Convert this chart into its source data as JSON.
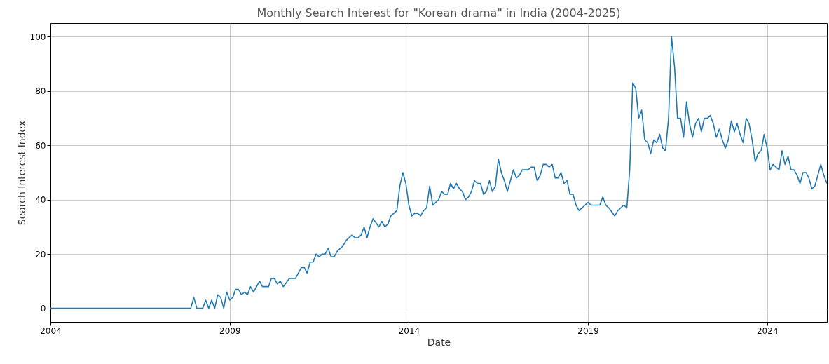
{
  "chart_data": {
    "type": "line",
    "title": "Monthly Search Interest for \"Korean drama\" in India (2004-2025)",
    "xlabel": "Date",
    "ylabel": "Search Interest Index",
    "x": [
      "2004-01",
      "2007-12",
      "2008-01",
      "2008-02",
      "2008-04",
      "2008-05",
      "2008-06",
      "2008-07",
      "2008-08",
      "2008-09",
      "2008-10",
      "2008-11",
      "2008-12",
      "2009-01",
      "2009-02",
      "2009-03",
      "2009-04",
      "2009-05",
      "2009-06",
      "2009-07",
      "2009-08",
      "2009-09",
      "2009-11",
      "2009-12",
      "2010-02",
      "2010-03",
      "2010-04",
      "2010-05",
      "2010-06",
      "2010-07",
      "2010-09",
      "2010-11",
      "2011-01",
      "2011-02",
      "2011-03",
      "2011-04",
      "2011-05",
      "2011-06",
      "2011-07",
      "2011-08",
      "2011-09",
      "2011-10",
      "2011-11",
      "2011-12",
      "2012-01",
      "2012-03",
      "2012-04",
      "2012-05",
      "2012-06",
      "2012-07",
      "2012-08",
      "2012-09",
      "2012-10",
      "2012-11",
      "2012-12",
      "2013-01",
      "2013-03",
      "2013-04",
      "2013-05",
      "2013-06",
      "2013-07",
      "2013-08",
      "2013-09",
      "2013-10",
      "2013-11",
      "2013-12",
      "2014-01",
      "2014-02",
      "2014-03",
      "2014-04",
      "2014-05",
      "2014-06",
      "2014-07",
      "2014-08",
      "2014-09",
      "2014-11",
      "2014-12",
      "2015-01",
      "2015-02",
      "2015-03",
      "2015-04",
      "2015-05",
      "2015-06",
      "2015-07",
      "2015-08",
      "2015-09",
      "2015-10",
      "2015-11",
      "2015-12",
      "2016-01",
      "2016-02",
      "2016-03",
      "2016-04",
      "2016-05",
      "2016-06",
      "2016-07",
      "2016-08",
      "2016-09",
      "2016-10",
      "2016-11",
      "2016-12",
      "2017-01",
      "2017-02",
      "2017-03",
      "2017-05",
      "2017-06",
      "2017-07",
      "2017-08",
      "2017-09",
      "2017-10",
      "2017-11",
      "2017-12",
      "2018-01",
      "2018-02",
      "2018-03",
      "2018-04",
      "2018-05",
      "2018-06",
      "2018-07",
      "2018-08",
      "2018-09",
      "2018-10",
      "2018-12",
      "2019-01",
      "2019-02",
      "2019-05",
      "2019-06",
      "2019-07",
      "2019-08",
      "2019-10",
      "2019-11",
      "2020-01",
      "2020-02",
      "2020-03",
      "2020-04",
      "2020-05",
      "2020-06",
      "2020-07",
      "2020-08",
      "2020-09",
      "2020-10",
      "2020-11",
      "2020-12",
      "2021-01",
      "2021-02",
      "2021-03",
      "2021-04",
      "2021-05",
      "2021-06",
      "2021-07",
      "2021-08",
      "2021-09",
      "2021-10",
      "2021-11",
      "2021-12",
      "2022-01",
      "2022-02",
      "2022-03",
      "2022-04",
      "2022-05",
      "2022-06",
      "2022-07",
      "2022-08",
      "2022-09",
      "2022-10",
      "2022-11",
      "2022-12",
      "2023-01",
      "2023-02",
      "2023-03",
      "2023-04",
      "2023-05",
      "2023-06",
      "2023-07",
      "2023-08",
      "2023-09",
      "2023-10",
      "2023-11",
      "2023-12",
      "2024-01",
      "2024-02",
      "2024-03",
      "2024-04",
      "2024-05",
      "2024-06",
      "2024-07",
      "2024-08",
      "2024-09",
      "2024-10",
      "2024-11",
      "2024-12",
      "2025-01",
      "2025-02",
      "2025-03",
      "2025-04",
      "2025-05",
      "2025-07",
      "2025-08",
      "2025-09"
    ],
    "series": [
      {
        "color": "#1f77b4",
        "values": [
          0,
          0,
          4,
          0,
          0,
          3,
          0,
          3,
          0,
          5,
          4,
          0,
          6,
          3,
          4,
          7,
          7,
          5,
          6,
          5,
          8,
          6,
          10,
          8,
          8,
          11,
          11,
          9,
          10,
          8,
          11,
          11,
          15,
          15,
          13,
          17,
          17,
          20,
          19,
          20,
          20,
          22,
          19,
          19,
          21,
          23,
          25,
          26,
          27,
          26,
          26,
          27,
          30,
          26,
          30,
          33,
          30,
          32,
          30,
          31,
          34,
          35,
          36,
          45,
          50,
          46,
          38,
          34,
          35,
          35,
          34,
          36,
          37,
          45,
          38,
          40,
          43,
          42,
          42,
          46,
          44,
          46,
          44,
          43,
          40,
          41,
          43,
          47,
          46,
          46,
          42,
          43,
          47,
          43,
          45,
          55,
          50,
          47,
          43,
          47,
          51,
          48,
          49,
          51,
          51,
          52,
          52,
          47,
          49,
          53,
          53,
          52,
          53,
          48,
          48,
          50,
          46,
          47,
          42,
          42,
          38,
          36,
          38,
          39,
          38,
          38,
          41,
          38,
          37,
          34,
          36,
          38,
          37,
          51,
          83,
          81,
          70,
          73,
          62,
          61,
          57,
          62,
          61,
          64,
          59,
          58,
          70,
          100,
          89,
          70,
          70,
          63,
          76,
          68,
          63,
          68,
          70,
          65,
          70,
          70,
          71,
          68,
          63,
          66,
          62,
          59,
          62,
          69,
          65,
          68,
          64,
          61,
          70,
          68,
          62,
          54,
          57,
          58,
          64,
          59,
          51,
          53,
          52,
          51,
          58,
          53,
          56,
          51,
          51,
          49,
          46,
          50,
          50,
          48,
          44,
          45,
          53,
          49,
          46
        ]
      }
    ],
    "xlim": [
      "2004-01",
      "2025-09"
    ],
    "xticks": [
      "2004",
      "2009",
      "2014",
      "2019",
      "2024"
    ],
    "ylim": [
      -5,
      105
    ],
    "yticks": [
      0,
      20,
      40,
      60,
      80,
      100
    ],
    "grid": true
  }
}
